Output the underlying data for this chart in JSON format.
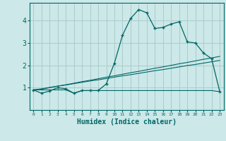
{
  "xlabel": "Humidex (Indice chaleur)",
  "bg_color": "#cce8e8",
  "grid_color": "#aacccc",
  "line_color": "#006666",
  "x_humidex": [
    0,
    1,
    2,
    3,
    4,
    5,
    6,
    7,
    8,
    9,
    10,
    11,
    12,
    13,
    14,
    15,
    16,
    17,
    18,
    19,
    20,
    21,
    22,
    23
  ],
  "y_curve1": [
    0.9,
    0.75,
    0.85,
    1.0,
    0.95,
    0.75,
    0.87,
    0.87,
    0.87,
    1.17,
    2.1,
    3.35,
    4.1,
    4.5,
    4.35,
    3.65,
    3.7,
    3.85,
    3.95,
    3.05,
    3.0,
    2.55,
    2.3,
    0.83
  ],
  "y_line1": [
    0.9,
    0.93,
    1.0,
    1.07,
    1.13,
    1.2,
    1.27,
    1.33,
    1.4,
    1.47,
    1.53,
    1.6,
    1.67,
    1.73,
    1.8,
    1.87,
    1.93,
    2.0,
    2.07,
    2.13,
    2.2,
    2.27,
    2.33,
    2.4
  ],
  "y_line2": [
    0.9,
    0.95,
    1.01,
    1.07,
    1.12,
    1.18,
    1.24,
    1.3,
    1.35,
    1.41,
    1.47,
    1.53,
    1.58,
    1.64,
    1.7,
    1.76,
    1.81,
    1.87,
    1.93,
    1.99,
    2.04,
    2.1,
    2.16,
    2.22
  ],
  "y_flat": [
    0.9,
    0.9,
    0.9,
    0.9,
    0.9,
    0.75,
    0.87,
    0.87,
    0.87,
    0.87,
    0.87,
    0.87,
    0.87,
    0.87,
    0.87,
    0.87,
    0.87,
    0.87,
    0.87,
    0.87,
    0.87,
    0.87,
    0.87,
    0.82
  ],
  "ylim": [
    0,
    4.8
  ],
  "yticks": [
    1,
    2,
    3,
    4
  ],
  "xtick_labels": [
    "0",
    "1",
    "2",
    "3",
    "4",
    "5",
    "6",
    "7",
    "8",
    "9",
    "10",
    "11",
    "12",
    "13",
    "14",
    "15",
    "16",
    "17",
    "18",
    "19",
    "20",
    "21",
    "22",
    "23"
  ]
}
